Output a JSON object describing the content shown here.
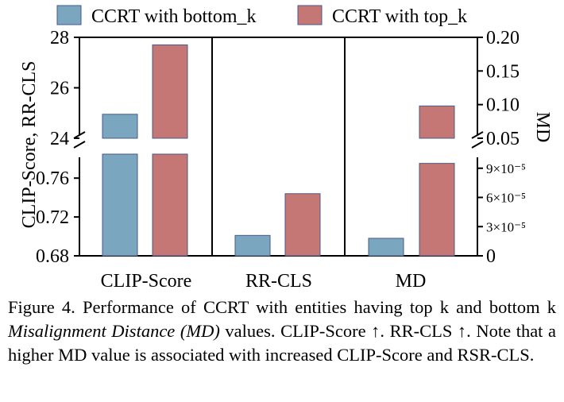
{
  "chart_data": {
    "type": "bar",
    "panels": [
      "CLIP-Score",
      "RR-CLS",
      "MD"
    ],
    "series": [
      {
        "name": "CCRT with bottom_k",
        "color": "#7aa6c0"
      },
      {
        "name": "CCRT with top_k",
        "color": "#c47774"
      }
    ],
    "values": {
      "CLIP-Score": {
        "bottom_k": 24.95,
        "top_k": 27.7
      },
      "RR-CLS": {
        "bottom_k": 0.701,
        "top_k": 0.744
      },
      "MD_low": {
        "bottom_k": 1.8e-05,
        "top_k": 9.5e-05
      },
      "MD_high": {
        "top_k": 0.098
      }
    },
    "left_axis": {
      "label": "CLIP-Score, RR-CLS",
      "upper": {
        "range": [
          24,
          28
        ],
        "ticks": [
          "24",
          "26",
          "28"
        ]
      },
      "lower": {
        "range": [
          0.68,
          0.7847
        ],
        "ticks": [
          "0.68",
          "0.72",
          "0.76"
        ]
      }
    },
    "right_axis": {
      "label": "MD",
      "upper": {
        "range": [
          0.05,
          0.2
        ],
        "ticks": [
          "0.05",
          "0.10",
          "0.15",
          "0.20"
        ]
      },
      "lower": {
        "range": [
          0,
          0.0001045
        ],
        "ticks": [
          "0",
          "3×10⁻⁵",
          "6×10⁻⁵",
          "9×10⁻⁵"
        ]
      }
    }
  },
  "caption": {
    "prefix": "Figure 4. Performance of CCRT with entities having top k and bottom k ",
    "italic": "Misalignment Distance (MD)",
    "suffix": " values. CLIP-Score ↑. RR-CLS ↑. Note that a higher MD value is associated with increased CLIP-Score and RSR-CLS."
  }
}
